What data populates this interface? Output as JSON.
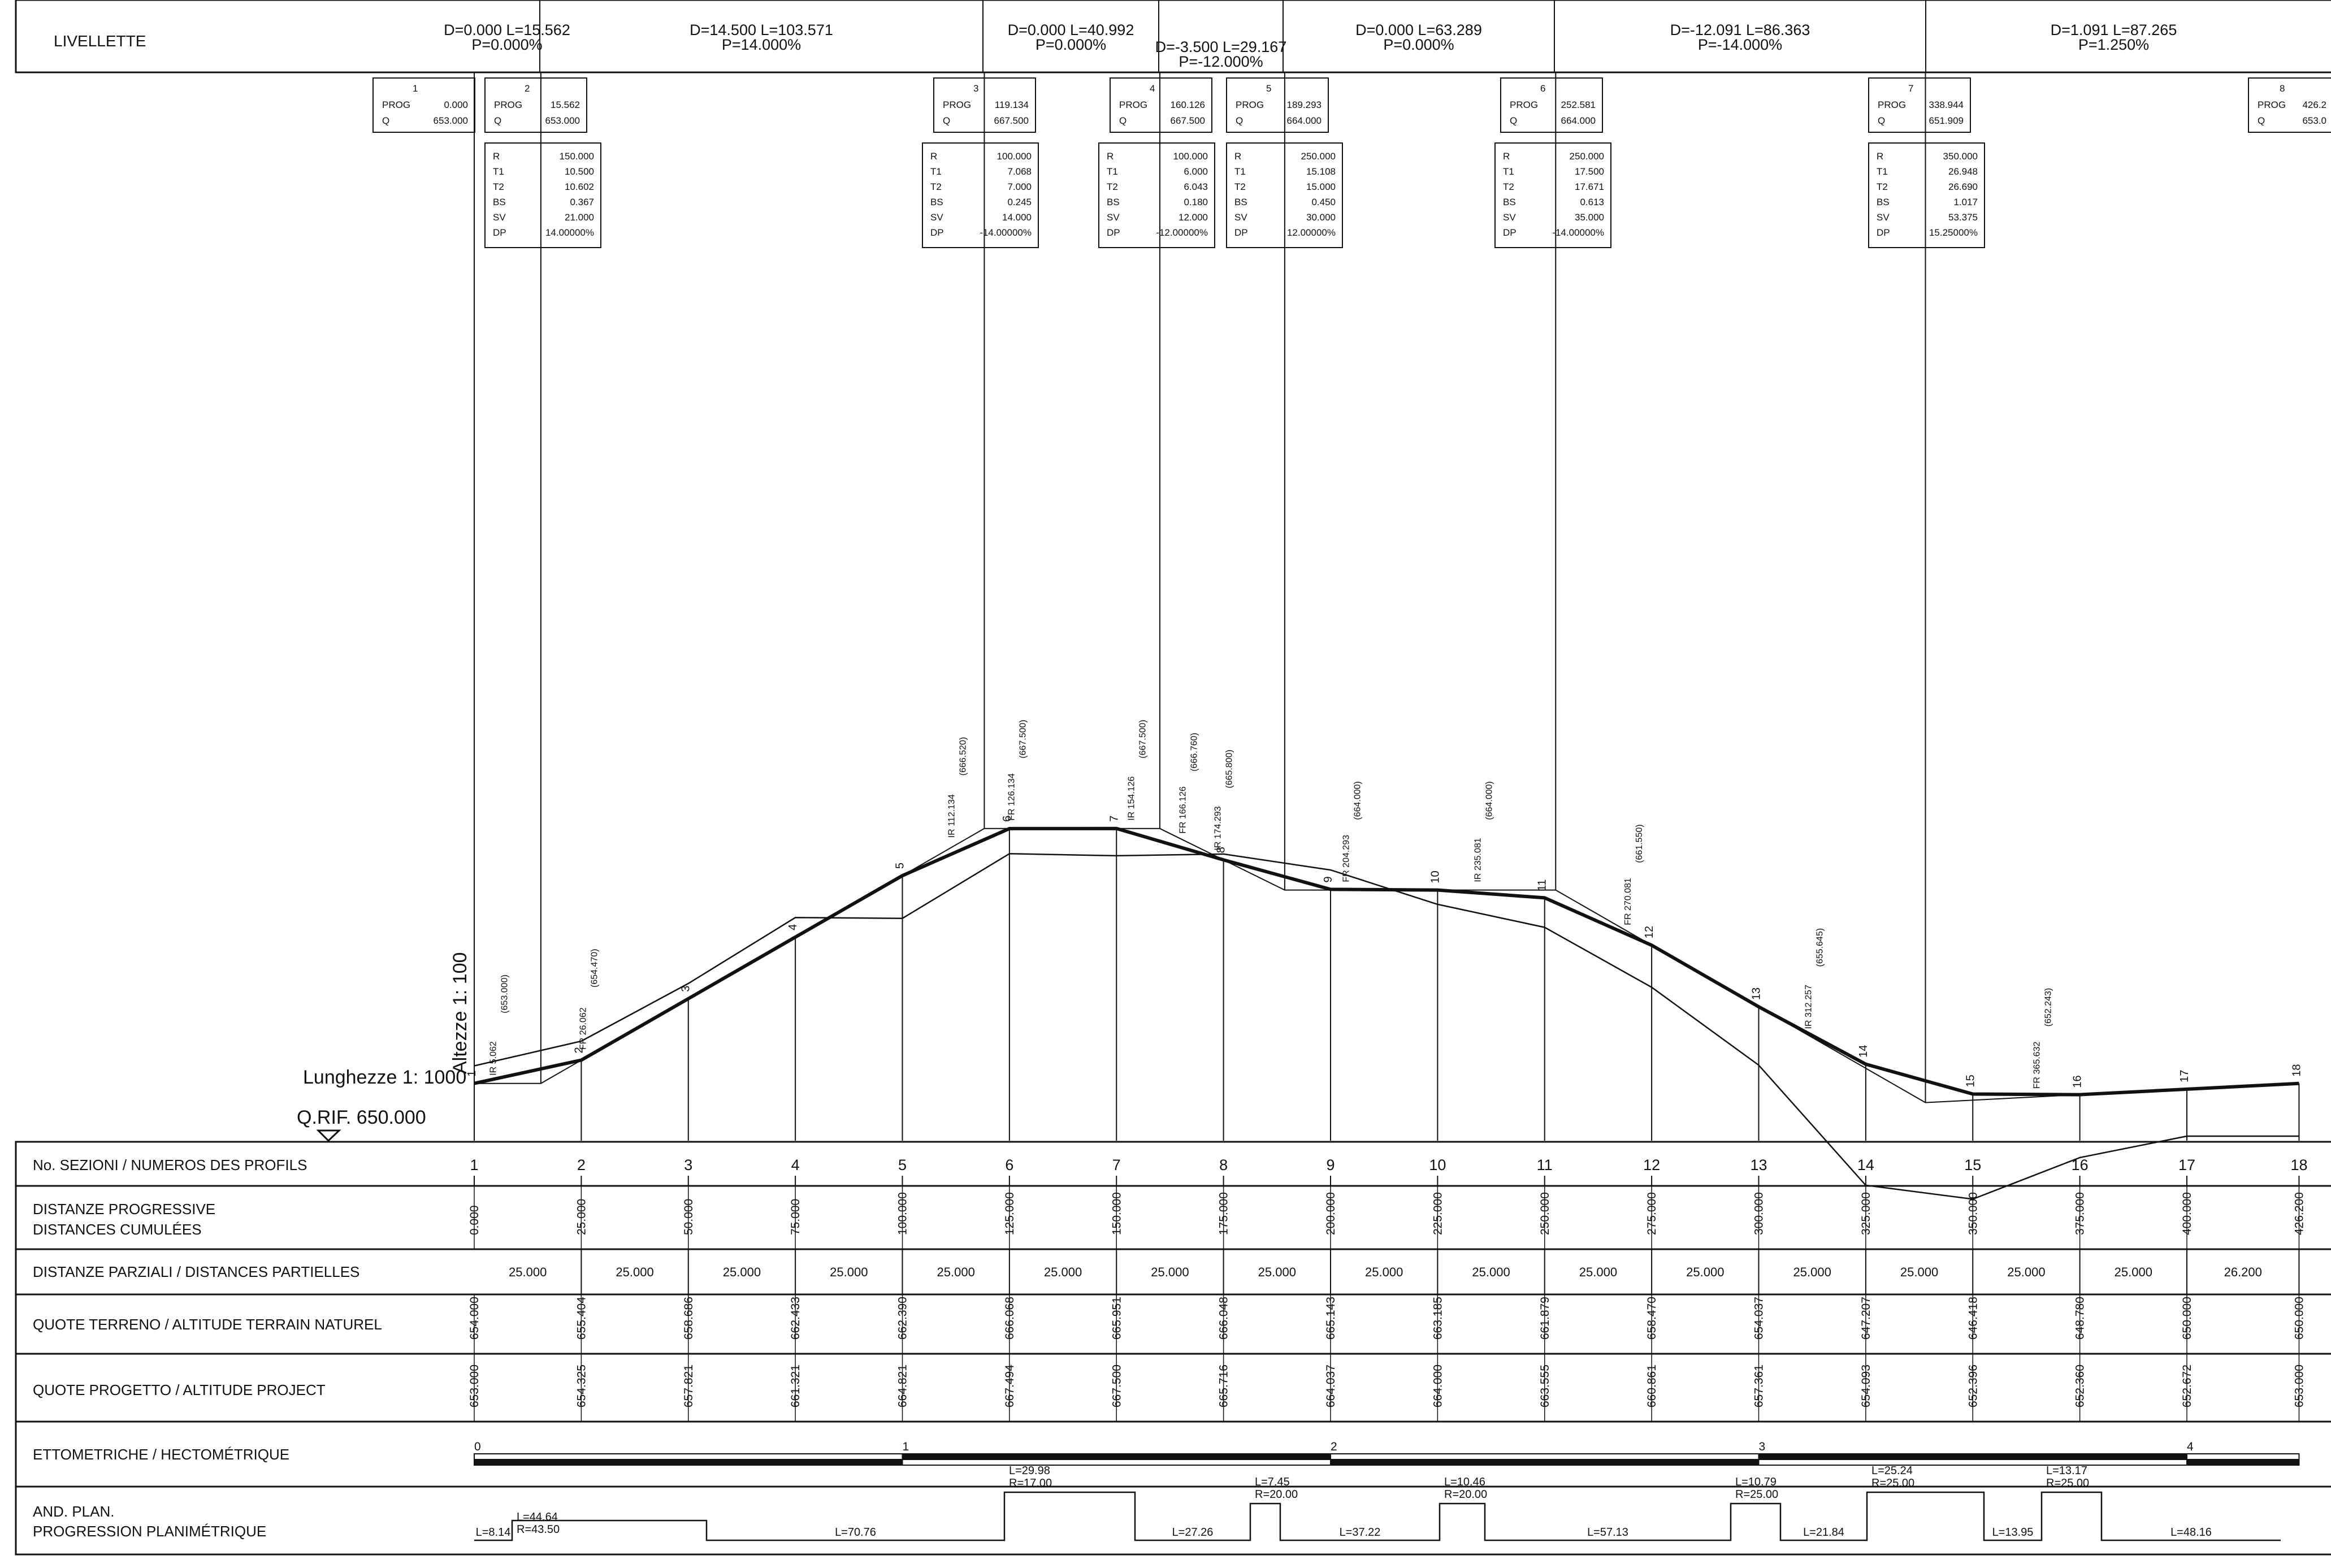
{
  "header": {
    "title": "LIVELLETTE",
    "segments": [
      {
        "d": "D=0.000 L=15.562",
        "p": "P=0.000%"
      },
      {
        "d": "D=14.500 L=103.571",
        "p": "P=14.000%"
      },
      {
        "d": "D=0.000 L=40.992",
        "p": "P=0.000%"
      },
      {
        "d": "D=-3.500 L=29.167",
        "p": "P=-12.000%"
      },
      {
        "d": "D=0.000 L=63.289",
        "p": "P=0.000%"
      },
      {
        "d": "D=-12.091 L=86.363",
        "p": "P=-14.000%"
      },
      {
        "d": "D=1.091 L=87.265",
        "p": "P=1.250%"
      }
    ]
  },
  "vertices": [
    {
      "num": "1",
      "prog": "0.000",
      "q": "653.000"
    },
    {
      "num": "2",
      "prog": "15.562",
      "q": "653.000"
    },
    {
      "num": "3",
      "prog": "119.134",
      "q": "667.500"
    },
    {
      "num": "4",
      "prog": "160.126",
      "q": "667.500"
    },
    {
      "num": "5",
      "prog": "189.293",
      "q": "664.000"
    },
    {
      "num": "6",
      "prog": "252.581",
      "q": "664.000"
    },
    {
      "num": "7",
      "prog": "338.944",
      "q": "651.909"
    },
    {
      "num": "8",
      "prog": "426.2",
      "q": "653.0"
    }
  ],
  "vertex_labels": {
    "prog": "PROG",
    "q": "Q"
  },
  "curves": [
    {
      "R": "150.000",
      "T1": "10.500",
      "T2": "10.602",
      "BS": "0.367",
      "SV": "21.000",
      "DP": "14.00000%"
    },
    {
      "R": "100.000",
      "T1": "7.068",
      "T2": "7.000",
      "BS": "0.245",
      "SV": "14.000",
      "DP": "-14.00000%"
    },
    {
      "R": "100.000",
      "T1": "6.000",
      "T2": "6.043",
      "BS": "0.180",
      "SV": "12.000",
      "DP": "-12.00000%"
    },
    {
      "R": "250.000",
      "T1": "15.108",
      "T2": "15.000",
      "BS": "0.450",
      "SV": "30.000",
      "DP": "12.00000%"
    },
    {
      "R": "250.000",
      "T1": "17.500",
      "T2": "17.671",
      "BS": "0.613",
      "SV": "35.000",
      "DP": "-14.00000%"
    },
    {
      "R": "350.000",
      "T1": "26.948",
      "T2": "26.690",
      "BS": "1.017",
      "SV": "53.375",
      "DP": "15.25000%"
    }
  ],
  "curve_keys": [
    "R",
    "T1",
    "T2",
    "BS",
    "SV",
    "DP"
  ],
  "tangent_points": [
    {
      "label": "IR 5.062",
      "q": "(653.000)"
    },
    {
      "label": "FR 26.062",
      "q": "(654.470)"
    },
    {
      "label": "IR 112.134",
      "q": "(666.520)"
    },
    {
      "label": "FR 126.134",
      "q": "(667.500)"
    },
    {
      "label": "IR 154.126",
      "q": "(667.500)"
    },
    {
      "label": "FR 166.126",
      "q": "(666.760)"
    },
    {
      "label": "IR 174.293",
      "q": "(665.800)"
    },
    {
      "label": "FR 204.293",
      "q": "(664.000)"
    },
    {
      "label": "IR 235.081",
      "q": "(664.000)"
    },
    {
      "label": "FR 270.081",
      "q": "(661.550)"
    },
    {
      "label": "IR 312.257",
      "q": "(655.645)"
    },
    {
      "label": "FR 365.632",
      "q": "(652.243)"
    }
  ],
  "scales": {
    "heights": "Altezze 1: 100",
    "lengths": "Lunghezze 1: 1000",
    "reference": "Q.RIF. 650.000"
  },
  "rows": {
    "sections_label": "No. SEZIONI / NUMEROS DES PROFILS",
    "progressive_label_1": "DISTANZE PROGRESSIVE",
    "progressive_label_2": "DISTANCES CUMULÉES",
    "partial_label": "DISTANZE PARZIALI / DISTANCES PARTIELLES",
    "terrain_label": "QUOTE TERRENO / ALTITUDE TERRAIN NATUREL",
    "project_label": "QUOTE PROGETTO / ALTITUDE PROJECT",
    "hecto_label": "ETTOMETRICHE / HECTOMÉTRIQUE",
    "plan_label_1": "AND. PLAN.",
    "plan_label_2": "PROGRESSION PLANIMÉTRIQUE"
  },
  "sections": [
    "1",
    "2",
    "3",
    "4",
    "5",
    "6",
    "7",
    "8",
    "9",
    "10",
    "11",
    "12",
    "13",
    "14",
    "15",
    "16",
    "17",
    "18"
  ],
  "progressive": [
    "0.000",
    "25.000",
    "50.000",
    "75.000",
    "100.000",
    "125.000",
    "150.000",
    "175.000",
    "200.000",
    "225.000",
    "250.000",
    "275.000",
    "300.000",
    "325.000",
    "350.000",
    "375.000",
    "400.000",
    "426.200"
  ],
  "partial": [
    "25.000",
    "25.000",
    "25.000",
    "25.000",
    "25.000",
    "25.000",
    "25.000",
    "25.000",
    "25.000",
    "25.000",
    "25.000",
    "25.000",
    "25.000",
    "25.000",
    "25.000",
    "25.000",
    "26.200"
  ],
  "terrain": [
    "654.000",
    "655.404",
    "658.686",
    "662.433",
    "662.390",
    "666.068",
    "665.951",
    "666.048",
    "665.143",
    "663.185",
    "661.879",
    "658.470",
    "654.037",
    "647.207",
    "646.418",
    "648.780",
    "650.000",
    "650.000"
  ],
  "project": [
    "653.000",
    "654.325",
    "657.821",
    "661.321",
    "664.821",
    "667.494",
    "667.500",
    "665.716",
    "664.037",
    "664.000",
    "663.555",
    "660.861",
    "657.361",
    "654.093",
    "652.396",
    "652.360",
    "652.672",
    "653.000"
  ],
  "hectometric": [
    "0",
    "1",
    "2",
    "3",
    "4"
  ],
  "plan_segments": [
    {
      "type": "straight",
      "l": "L=8.14"
    },
    {
      "type": "curve",
      "r": "R=43.50",
      "l": "L=44.64"
    },
    {
      "type": "straight",
      "l": "L=70.76"
    },
    {
      "type": "curve",
      "r": "R=17.00",
      "l": "L=29.98"
    },
    {
      "type": "straight",
      "l": "L=27.26"
    },
    {
      "type": "curve",
      "r": "R=20.00",
      "l": "L=7.45"
    },
    {
      "type": "straight",
      "l": "L=37.22"
    },
    {
      "type": "curve",
      "r": "R=20.00",
      "l": "L=10.46"
    },
    {
      "type": "straight",
      "l": "L=57.13"
    },
    {
      "type": "curve",
      "r": "R=25.00",
      "l": "L=10.79"
    },
    {
      "type": "straight",
      "l": "L=21.84"
    },
    {
      "type": "curve",
      "r": "R=25.00",
      "l": "L=25.24"
    },
    {
      "type": "straight",
      "l": "L=13.95"
    },
    {
      "type": "curve",
      "r": "R=25.00",
      "l": "L=13.17"
    },
    {
      "type": "straight",
      "l": "L=48.16"
    }
  ],
  "colors": {
    "ink": "#111111",
    "paper": "#ffffff"
  }
}
